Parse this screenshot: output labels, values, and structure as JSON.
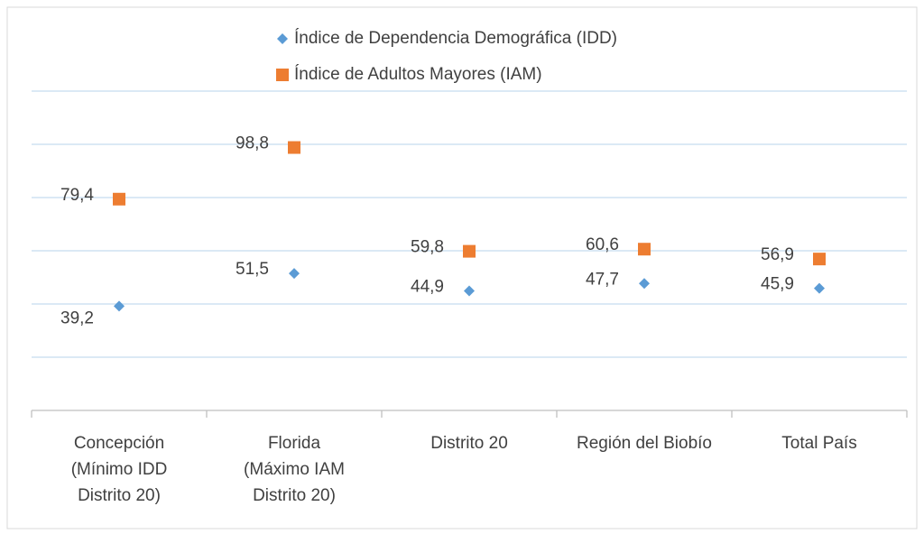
{
  "chart_data": {
    "type": "scatter",
    "categories": [
      "Concepción\n(Mínimo IDD\nDistrito 20)",
      "Florida\n(Máximo IAM\nDistrito 20)",
      "Distrito 20",
      "Región del Biobío",
      "Total País"
    ],
    "series": [
      {
        "name": "Índice de Dependencia Demográfica (IDD)",
        "color": "#5b9bd5",
        "marker": "diamond",
        "values": [
          39.2,
          51.5,
          44.9,
          47.7,
          45.9
        ],
        "value_labels": [
          "39,2",
          "51,5",
          "44,9",
          "47,7",
          "45,9"
        ]
      },
      {
        "name": "Índice de Adultos Mayores (IAM)",
        "color": "#ed7d31",
        "marker": "square",
        "values": [
          79.4,
          98.8,
          59.8,
          60.6,
          56.9
        ],
        "value_labels": [
          "79,4",
          "98,8",
          "59,8",
          "60,6",
          "56,9"
        ]
      }
    ],
    "ylim": [
      0,
      120
    ],
    "yticks": [
      0,
      20,
      40,
      60,
      80,
      100,
      120
    ],
    "grid": true,
    "legend": "top"
  }
}
